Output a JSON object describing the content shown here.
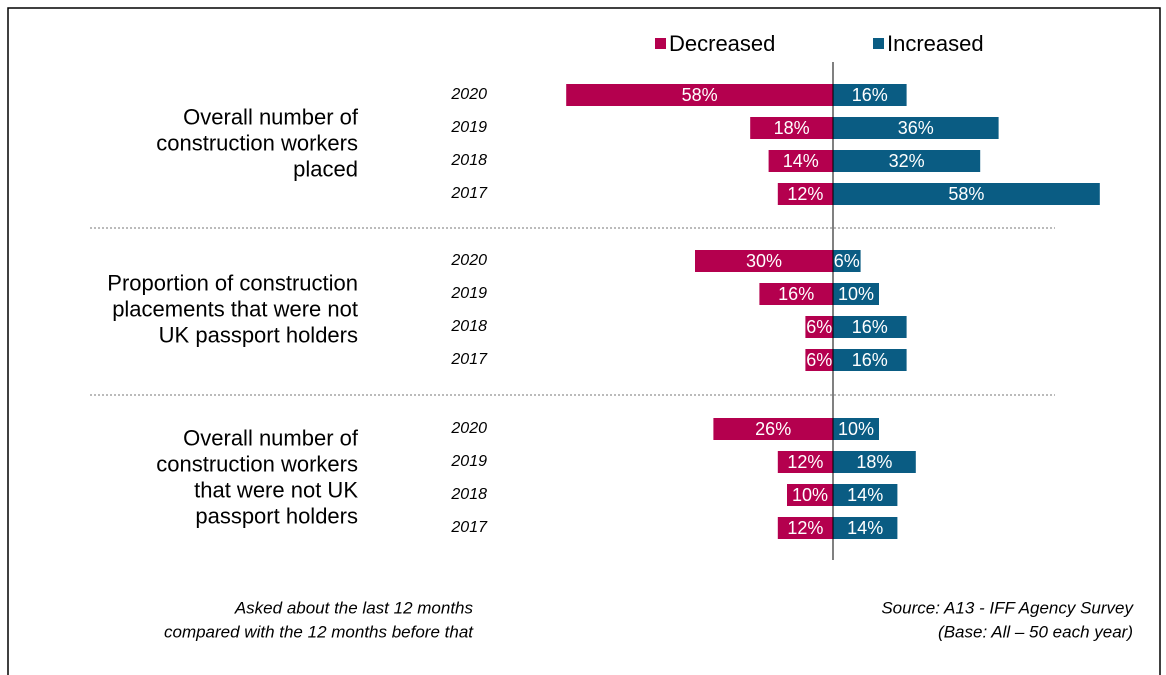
{
  "chart_data": {
    "type": "diverging_bar",
    "group_labels": [
      [
        "Overall number of",
        "construction workers",
        "placed"
      ],
      [
        "Proportion of construction",
        "placements that were not",
        "UK passport holders"
      ],
      [
        "Overall number of",
        "construction workers",
        "that were not UK",
        "passport holders"
      ]
    ],
    "categories": [
      [
        "2020",
        "2019",
        "2018",
        "2017"
      ],
      [
        "2020",
        "2019",
        "2018",
        "2017"
      ],
      [
        "2020",
        "2019",
        "2018",
        "2017"
      ]
    ],
    "series": [
      {
        "name": "Decreased",
        "color": "#b4004e",
        "side": "left",
        "values": [
          [
            58,
            18,
            14,
            12
          ],
          [
            30,
            16,
            6,
            6
          ],
          [
            26,
            12,
            10,
            12
          ]
        ],
        "value_labels": [
          [
            "58%",
            "18%",
            "14%",
            "12%"
          ],
          [
            "30%",
            "16%",
            "6%",
            "6%"
          ],
          [
            "26%",
            "12%",
            "10%",
            "12%"
          ]
        ]
      },
      {
        "name": "Increased",
        "color": "#0a5c83",
        "side": "right",
        "values": [
          [
            16,
            36,
            32,
            58
          ],
          [
            6,
            10,
            16,
            16
          ],
          [
            10,
            18,
            14,
            14
          ]
        ],
        "value_labels": [
          [
            "16%",
            "36%",
            "32%",
            "58%"
          ],
          [
            "6%",
            "10%",
            "16%",
            "16%"
          ],
          [
            "10%",
            "18%",
            "14%",
            "14%"
          ]
        ]
      }
    ],
    "note": [
      "Asked about the last 12 months",
      "compared with the 12 months before that"
    ],
    "source": [
      "Source: A13 - IFF Agency Survey",
      "(Base: All – 50 each year)"
    ]
  }
}
